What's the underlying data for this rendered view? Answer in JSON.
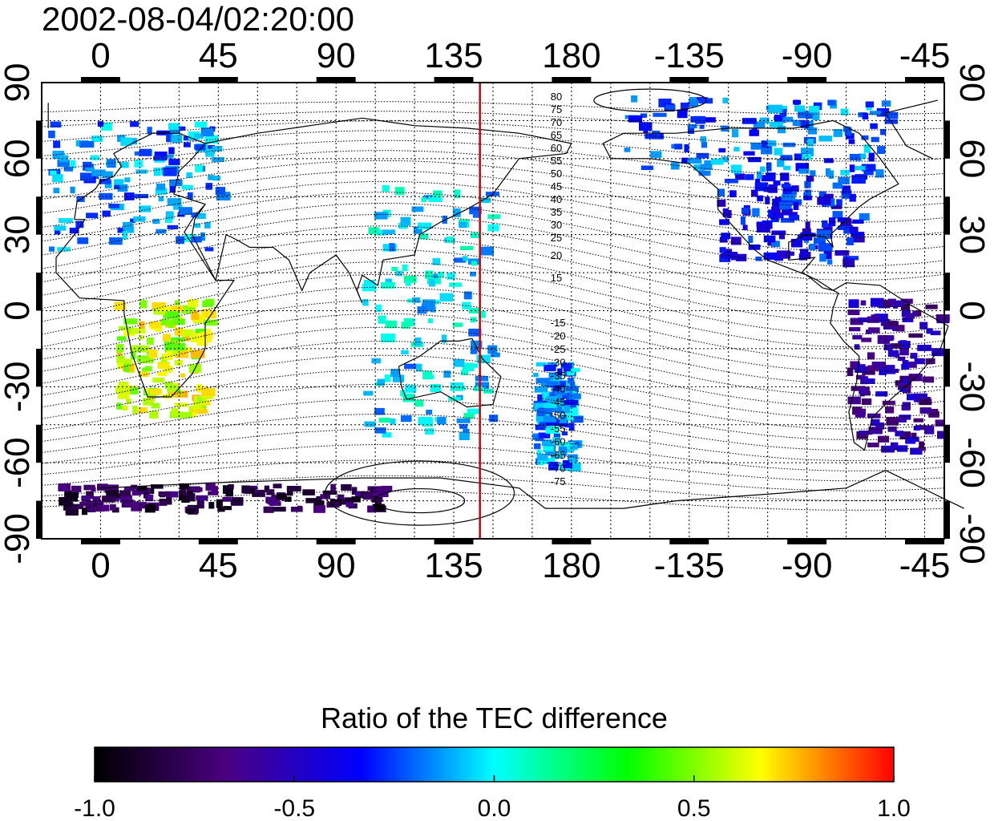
{
  "title": "2002-08-04/02:20:00",
  "map": {
    "lon_min": -22.5,
    "lon_max": -37.5,
    "lat_min": -90,
    "lat_max": 90,
    "top_lon_labels": [
      "0",
      "45",
      "90",
      "135",
      "180",
      "-135",
      "-90",
      "-45"
    ],
    "bottom_lon_labels": [
      "0",
      "45",
      "90",
      "135",
      "180",
      "-135",
      "-90",
      "-45"
    ],
    "lat_labels": [
      "90",
      "60",
      "30",
      "0",
      "-30",
      "-60",
      "-90"
    ],
    "terminator_lon": 145,
    "terminator_color": "#d40000",
    "north_mlat_labels": [
      "80",
      "75",
      "70",
      "65",
      "60",
      "55",
      "50",
      "45",
      "40",
      "35",
      "30",
      "25",
      "20",
      "15"
    ],
    "south_mlat_labels": [
      "-15",
      "-20",
      "-25",
      "-30",
      "-35",
      "-40",
      "-45",
      "-50",
      "-55",
      "-60",
      "-65",
      "-70",
      "-75"
    ]
  },
  "colorbar": {
    "title": "Ratio of the TEC difference",
    "min": -1.0,
    "max": 1.0,
    "ticks": [
      "-1.0",
      "-0.5",
      "0.0",
      "0.5",
      "1.0"
    ],
    "colors": [
      "#000000",
      "#4b0082",
      "#0000ff",
      "#00ffff",
      "#00ff00",
      "#ffff00",
      "#ff0000"
    ]
  },
  "chart_data": {
    "type": "heatmap",
    "title": "2002-08-04/02:20:00",
    "colorbar_title": "Ratio of the TEC difference",
    "value_range": [
      -1.0,
      1.0
    ],
    "regions": [
      {
        "lon": [
          -20,
          45
        ],
        "lat": [
          25,
          75
        ],
        "value": -0.15
      },
      {
        "lon": [
          5,
          40
        ],
        "lat": [
          -40,
          5
        ],
        "value": 0.6
      },
      {
        "lon": [
          100,
          150
        ],
        "lat": [
          -50,
          50
        ],
        "value": -0.05
      },
      {
        "lon": [
          165,
          180
        ],
        "lat": [
          -60,
          -20
        ],
        "value": -0.15
      },
      {
        "lon": [
          -125,
          -70
        ],
        "lat": [
          20,
          55
        ],
        "value": -0.35
      },
      {
        "lon": [
          -160,
          -60
        ],
        "lat": [
          55,
          85
        ],
        "value": -0.2
      },
      {
        "lon": [
          -75,
          -40
        ],
        "lat": [
          -55,
          5
        ],
        "value": -0.6
      },
      {
        "lon": [
          -20,
          110
        ],
        "lat": [
          -78,
          -68
        ],
        "value": -0.8
      }
    ]
  }
}
